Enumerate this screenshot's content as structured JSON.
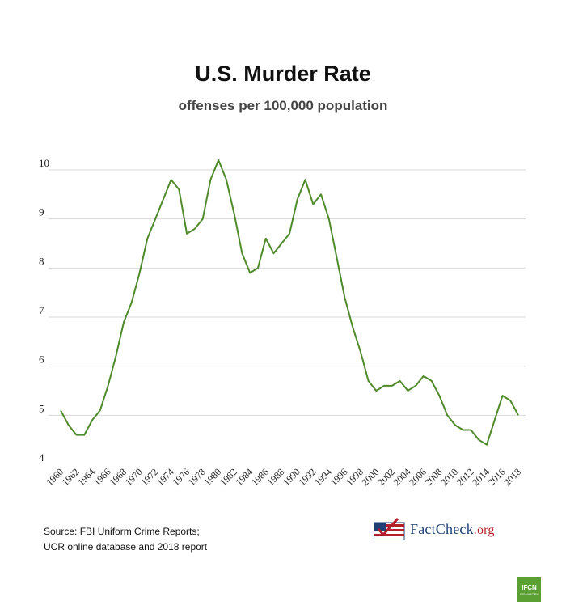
{
  "chart_data": {
    "type": "line",
    "title": "U.S. Murder Rate",
    "subtitle": "offenses per 100,000 population",
    "xlabel": "",
    "ylabel": "",
    "ylim": [
      4,
      10.5
    ],
    "yticks": [
      "4",
      "5",
      "6",
      "7",
      "8",
      "9",
      "10"
    ],
    "x": [
      1960,
      1961,
      1962,
      1963,
      1964,
      1965,
      1966,
      1967,
      1968,
      1969,
      1970,
      1971,
      1972,
      1973,
      1974,
      1975,
      1976,
      1977,
      1978,
      1979,
      1980,
      1981,
      1982,
      1983,
      1984,
      1985,
      1986,
      1987,
      1988,
      1989,
      1990,
      1991,
      1992,
      1993,
      1994,
      1995,
      1996,
      1997,
      1998,
      1999,
      2000,
      2001,
      2002,
      2003,
      2004,
      2005,
      2006,
      2007,
      2008,
      2009,
      2010,
      2011,
      2012,
      2013,
      2014,
      2015,
      2016,
      2017,
      2018
    ],
    "xticks": [
      "1960",
      "1962",
      "1964",
      "1966",
      "1968",
      "1970",
      "1972",
      "1974",
      "1976",
      "1978",
      "1980",
      "1982",
      "1984",
      "1986",
      "1988",
      "1990",
      "1992",
      "1994",
      "1996",
      "1998",
      "2000",
      "2002",
      "2004",
      "2006",
      "2008",
      "2010",
      "2012",
      "2014",
      "2016",
      "2018"
    ],
    "series": [
      {
        "name": "Murder rate",
        "color": "#4f8a2b",
        "values": [
          5.1,
          4.8,
          4.6,
          4.6,
          4.9,
          5.1,
          5.6,
          6.2,
          6.9,
          7.3,
          7.9,
          8.6,
          9.0,
          9.4,
          9.8,
          9.6,
          8.7,
          8.8,
          9.0,
          9.8,
          10.2,
          9.8,
          9.1,
          8.3,
          7.9,
          8.0,
          8.6,
          8.3,
          8.5,
          8.7,
          9.4,
          9.8,
          9.3,
          9.5,
          9.0,
          8.2,
          7.4,
          6.8,
          6.3,
          5.7,
          5.5,
          5.6,
          5.6,
          5.7,
          5.5,
          5.6,
          5.8,
          5.7,
          5.4,
          5.0,
          4.8,
          4.7,
          4.7,
          4.5,
          4.4,
          4.9,
          5.4,
          5.3,
          5.0
        ]
      }
    ],
    "grid": true
  },
  "source": {
    "line1": "Source: FBI Uniform Crime Reports;",
    "line2": "UCR online database and 2018 report"
  },
  "logo": {
    "main": "FactCheck",
    "suffix": ".org"
  },
  "badge": {
    "text": "IFCN",
    "subtext": "SIGNATORY"
  }
}
